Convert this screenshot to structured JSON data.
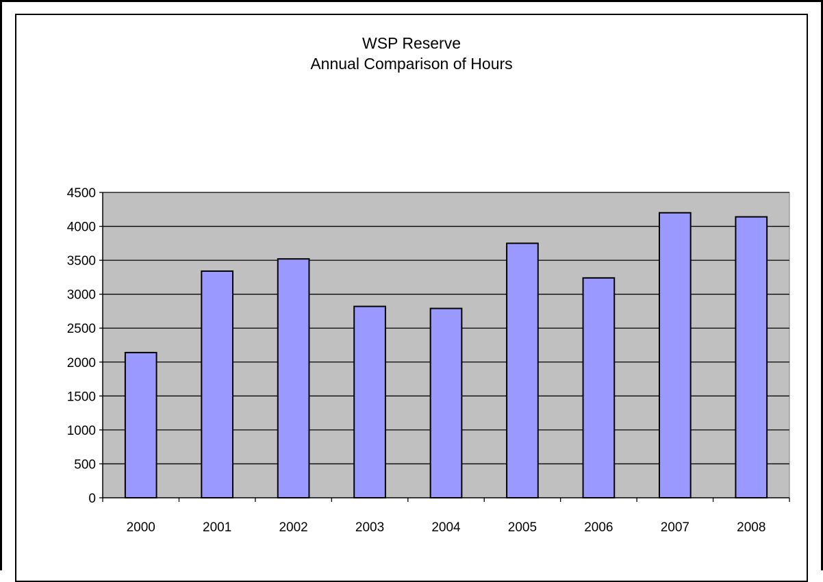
{
  "chart_data": {
    "type": "bar",
    "title": [
      "WSP Reserve",
      "Annual Comparison of Hours"
    ],
    "xlabel": "",
    "ylabel": "",
    "categories": [
      "2000",
      "2001",
      "2002",
      "2003",
      "2004",
      "2005",
      "2006",
      "2007",
      "2008"
    ],
    "series": [
      {
        "values": [
          2140,
          3340,
          3520,
          2820,
          2790,
          3750,
          3240,
          4200,
          4140
        ]
      }
    ],
    "ylim": [
      0,
      4500
    ],
    "yticks": [
      0,
      500,
      1000,
      1500,
      2000,
      2500,
      3000,
      3500,
      4000,
      4500
    ],
    "grid": true,
    "legend": "none",
    "colors": {
      "bar_fill": "#9999ff",
      "bar_stroke": "#000000",
      "plot_background": "#c0c0c0",
      "gridline": "#000000"
    }
  }
}
